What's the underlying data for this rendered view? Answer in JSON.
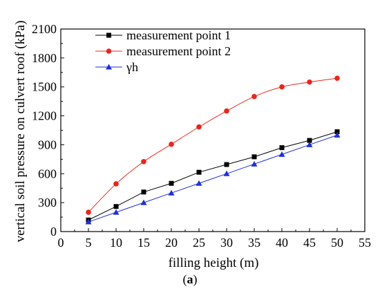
{
  "chart_data": {
    "type": "line",
    "xlabel": "filling height (m)",
    "ylabel": "vertical soil pressure on culvert roof (kPa)",
    "xlim": [
      0,
      55
    ],
    "ylim": [
      0,
      2100
    ],
    "xticks": [
      0,
      5,
      10,
      15,
      20,
      25,
      30,
      35,
      40,
      45,
      50,
      55
    ],
    "yticks": [
      0,
      300,
      600,
      900,
      1200,
      1500,
      1800,
      2100
    ],
    "grid": false,
    "legend_position": "top-left",
    "x": [
      5,
      10,
      15,
      20,
      25,
      30,
      35,
      40,
      45,
      50
    ],
    "series": [
      {
        "name": "measurement point 1",
        "color": "#000000",
        "marker": "square",
        "values": [
          120,
          260,
          410,
          500,
          615,
          695,
          775,
          870,
          945,
          1035
        ]
      },
      {
        "name": "measurement point 2",
        "color": "#e8261e",
        "marker": "circle",
        "values": [
          200,
          495,
          725,
          905,
          1085,
          1250,
          1400,
          1500,
          1550,
          1590
        ]
      },
      {
        "name": "γh",
        "color": "#1f2fd6",
        "marker": "triangle",
        "values": [
          100,
          200,
          300,
          400,
          500,
          600,
          700,
          800,
          900,
          1000
        ]
      }
    ]
  },
  "caption": {
    "open": "(",
    "letter": "a",
    "close": ")"
  }
}
